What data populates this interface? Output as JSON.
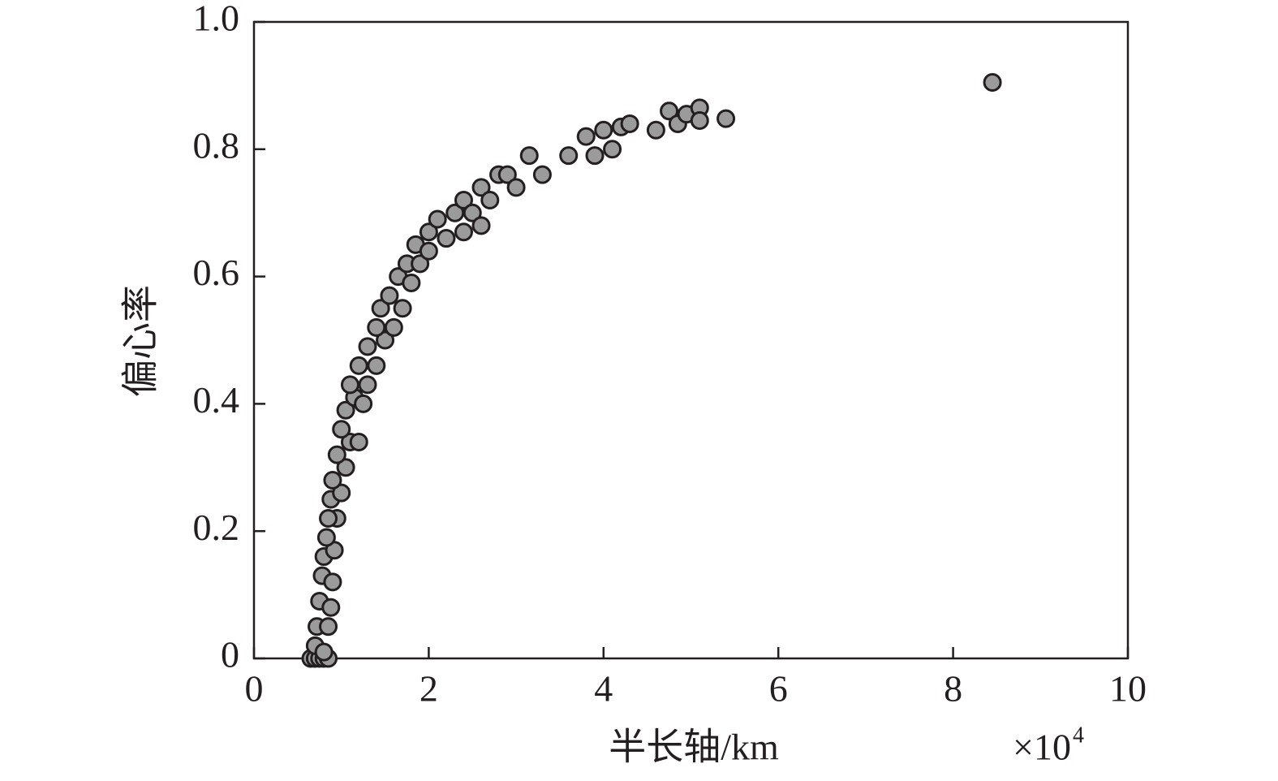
{
  "chart_data": {
    "type": "scatter",
    "x_label": "半长轴/km",
    "y_label": "偏心率",
    "x_scale_label": "×10",
    "x_scale_exponent": "4",
    "xlim": [
      0,
      10
    ],
    "xticks": [
      0,
      2,
      4,
      6,
      8,
      10
    ],
    "ylim": [
      0,
      1
    ],
    "yticks": [
      0,
      0.2,
      0.4,
      0.6,
      0.8,
      {
        "value": 1,
        "label": "1.0"
      }
    ],
    "color": "#9b9b9b",
    "x": [
      0.65,
      0.7,
      0.75,
      0.8,
      0.85,
      0.7,
      0.8,
      0.72,
      0.85,
      0.75,
      0.88,
      0.78,
      0.9,
      0.8,
      0.92,
      0.83,
      0.95,
      0.85,
      0.88,
      1.0,
      0.9,
      1.05,
      0.95,
      1.1,
      1.0,
      1.2,
      1.05,
      1.15,
      1.25,
      1.1,
      1.3,
      1.2,
      1.4,
      1.3,
      1.5,
      1.4,
      1.6,
      1.45,
      1.7,
      1.55,
      1.65,
      1.8,
      1.75,
      1.9,
      1.85,
      2.0,
      2.0,
      2.1,
      2.2,
      2.3,
      2.4,
      2.4,
      2.5,
      2.6,
      2.6,
      2.7,
      2.8,
      2.9,
      3.0,
      3.15,
      3.3,
      3.6,
      3.8,
      3.9,
      4.0,
      4.1,
      4.2,
      4.3,
      4.6,
      4.75,
      4.85,
      4.95,
      5.1,
      5.1,
      5.4,
      8.45
    ],
    "values": [
      0,
      0,
      0,
      0,
      0,
      0.02,
      0.01,
      0.05,
      0.05,
      0.09,
      0.08,
      0.13,
      0.12,
      0.16,
      0.17,
      0.19,
      0.22,
      0.22,
      0.25,
      0.26,
      0.28,
      0.3,
      0.32,
      0.34,
      0.36,
      0.34,
      0.39,
      0.41,
      0.4,
      0.43,
      0.43,
      0.46,
      0.46,
      0.49,
      0.5,
      0.52,
      0.52,
      0.55,
      0.55,
      0.57,
      0.6,
      0.59,
      0.62,
      0.62,
      0.65,
      0.64,
      0.67,
      0.69,
      0.66,
      0.7,
      0.67,
      0.72,
      0.7,
      0.68,
      0.74,
      0.72,
      0.76,
      0.76,
      0.74,
      0.79,
      0.76,
      0.79,
      0.82,
      0.79,
      0.83,
      0.8,
      0.835,
      0.84,
      0.83,
      0.86,
      0.84,
      0.855,
      0.865,
      0.845,
      0.848,
      0.905
    ]
  }
}
